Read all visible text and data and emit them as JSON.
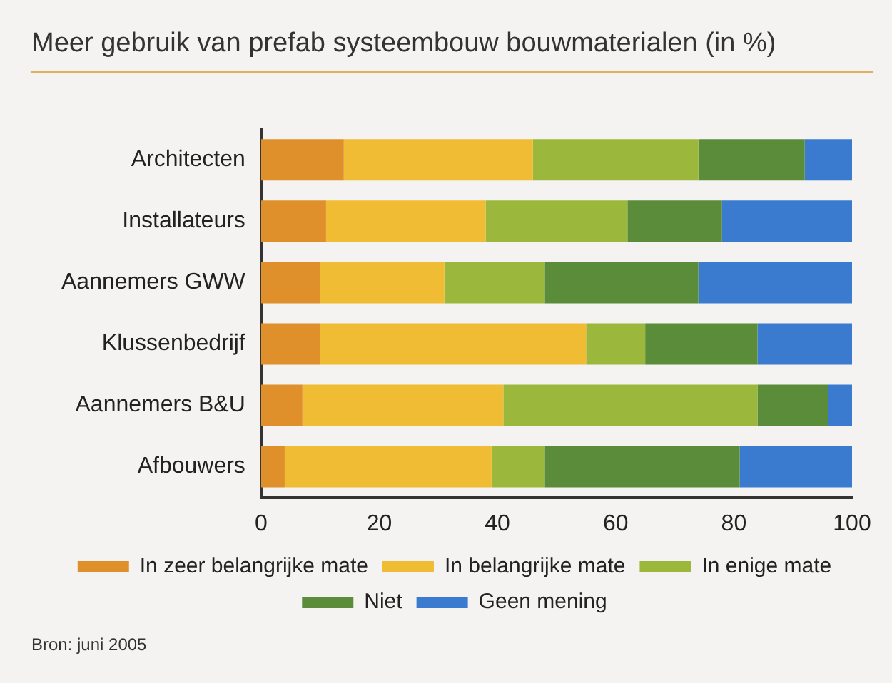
{
  "chart_data": {
    "type": "bar",
    "orientation": "horizontal",
    "stacked": true,
    "title": "Meer gebruik van prefab systeembouw bouwmaterialen (in %)",
    "categories": [
      "Architecten",
      "Installateurs",
      "Aannemers GWW",
      "Klussenbedrijf",
      "Aannemers B&U",
      "Afbouwers"
    ],
    "series": [
      {
        "name": "In zeer belangrijke mate",
        "color": "#e0902a",
        "values": [
          14,
          11,
          10,
          10,
          7,
          4
        ]
      },
      {
        "name": "In belangrijke mate",
        "color": "#f0bc34",
        "values": [
          32,
          27,
          21,
          45,
          34,
          35
        ]
      },
      {
        "name": "In enige mate",
        "color": "#9cb83c",
        "values": [
          28,
          24,
          17,
          10,
          43,
          9
        ]
      },
      {
        "name": "Niet",
        "color": "#5b8c3a",
        "values": [
          18,
          16,
          26,
          19,
          12,
          33
        ]
      },
      {
        "name": "Geen mening",
        "color": "#3a7bd0",
        "values": [
          8,
          22,
          26,
          16,
          4,
          19
        ]
      }
    ],
    "xlim": [
      0,
      100
    ],
    "xticks": [
      0,
      20,
      40,
      60,
      80,
      100
    ],
    "grid": false,
    "legend": "bottom",
    "annotations": [
      "Bron: juni 2005"
    ]
  }
}
